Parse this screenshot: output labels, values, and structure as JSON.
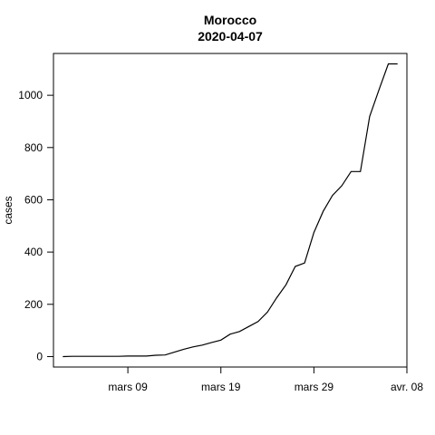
{
  "chart_data": {
    "type": "line",
    "title": "Morocco",
    "subtitle": "2020-04-07",
    "xlabel": "",
    "ylabel": "cases",
    "x_ticks": [
      "mars 09",
      "mars 19",
      "mars 29",
      "avr. 08"
    ],
    "y_ticks": [
      "0",
      "200",
      "400",
      "600",
      "800",
      "1000"
    ],
    "ylim": [
      -40,
      1160
    ],
    "xlim": [
      "2020-03-01",
      "2020-04-08"
    ],
    "grid": false,
    "series": [
      {
        "x": [
          "2020-03-02",
          "2020-03-03",
          "2020-03-04",
          "2020-03-05",
          "2020-03-06",
          "2020-03-07",
          "2020-03-08",
          "2020-03-09",
          "2020-03-10",
          "2020-03-11",
          "2020-03-12",
          "2020-03-13",
          "2020-03-14",
          "2020-03-15",
          "2020-03-16",
          "2020-03-17",
          "2020-03-18",
          "2020-03-19",
          "2020-03-20",
          "2020-03-21",
          "2020-03-22",
          "2020-03-23",
          "2020-03-24",
          "2020-03-25",
          "2020-03-26",
          "2020-03-27",
          "2020-03-28",
          "2020-03-29",
          "2020-03-30",
          "2020-03-31",
          "2020-04-01",
          "2020-04-02",
          "2020-04-03",
          "2020-04-04",
          "2020-04-05",
          "2020-04-06",
          "2020-04-07"
        ],
        "values": [
          0,
          1,
          1,
          1,
          1,
          1,
          1,
          2,
          2,
          2,
          5,
          6,
          17,
          28,
          37,
          44,
          54,
          63,
          86,
          96,
          115,
          134,
          170,
          225,
          275,
          345,
          358,
          475,
          556,
          617,
          654,
          708,
          708,
          919,
          1021,
          1120,
          1120
        ]
      }
    ]
  }
}
